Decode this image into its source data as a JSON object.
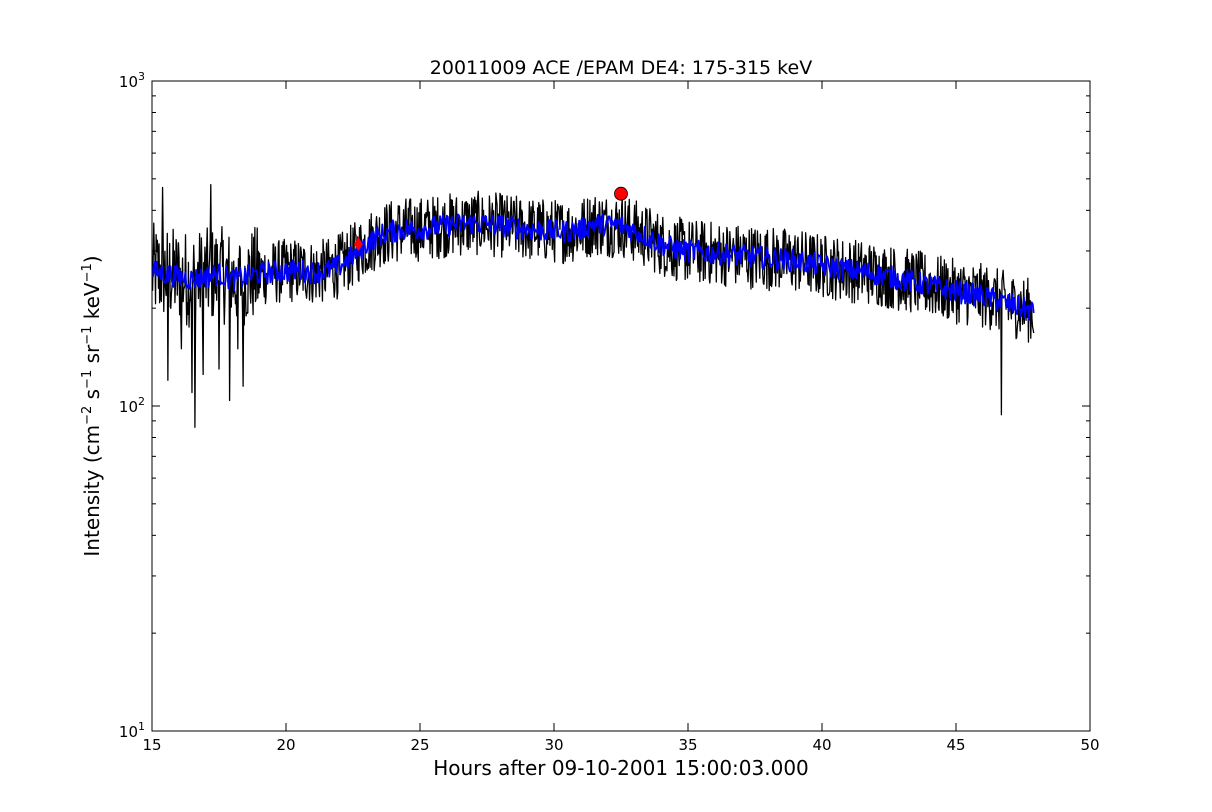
{
  "chart_data": {
    "type": "line",
    "title": "20011009 ACE /EPAM DE4: 175-315 keV",
    "xlabel": "Hours after 09-10-2001 15:00:03.000",
    "ylabel_parts": {
      "prefix": "Intensity (cm",
      "exp1": "−2",
      "mid1": " s",
      "exp2": "−1",
      "mid2": " sr",
      "exp3": "−1",
      "mid3": " keV",
      "exp4": "−1",
      "suffix": ")"
    },
    "xlim": [
      15,
      50
    ],
    "ylim": [
      10,
      1000
    ],
    "yscale": "log",
    "grid": false,
    "x_ticks": [
      {
        "value": 15,
        "label": "15"
      },
      {
        "value": 20,
        "label": "20"
      },
      {
        "value": 25,
        "label": "25"
      },
      {
        "value": 30,
        "label": "30"
      },
      {
        "value": 35,
        "label": "35"
      },
      {
        "value": 40,
        "label": "40"
      },
      {
        "value": 45,
        "label": "45"
      },
      {
        "value": 50,
        "label": "50"
      }
    ],
    "y_ticks": [
      {
        "value": 10,
        "base": "10",
        "exp": "1"
      },
      {
        "value": 100,
        "base": "10",
        "exp": "2"
      },
      {
        "value": 1000,
        "base": "10",
        "exp": "3"
      }
    ],
    "series": [
      {
        "color": "#000000",
        "x": [
          15.0,
          15.5,
          16.0,
          16.5,
          17.0,
          17.5,
          18.0,
          18.5,
          19.0,
          19.5,
          20.0,
          20.5,
          21.0,
          21.5,
          22.0,
          22.5,
          23.0,
          23.5,
          24.0,
          24.5,
          25.0,
          26.0,
          27.0,
          28.0,
          29.0,
          30.0,
          30.5,
          31.0,
          31.5,
          32.0,
          32.5,
          33.0,
          33.5,
          34.0,
          34.5,
          35.0,
          36.0,
          37.0,
          38.0,
          39.0,
          40.0,
          41.0,
          42.0,
          43.0,
          44.0,
          45.0,
          46.0,
          46.5,
          47.0,
          47.5,
          47.9
        ],
        "y": [
          260,
          255,
          250,
          245,
          250,
          255,
          245,
          250,
          255,
          258,
          260,
          262,
          258,
          260,
          270,
          290,
          315,
          335,
          345,
          350,
          350,
          360,
          365,
          360,
          350,
          345,
          345,
          350,
          365,
          360,
          360,
          345,
          330,
          315,
          305,
          300,
          295,
          290,
          285,
          280,
          270,
          262,
          255,
          245,
          235,
          225,
          218,
          212,
          205,
          200,
          195
        ],
        "noise_amp": 0.1,
        "spikes": [
          {
            "x": 15.4,
            "y": 470
          },
          {
            "x": 15.6,
            "y": 120
          },
          {
            "x": 16.1,
            "y": 150
          },
          {
            "x": 16.5,
            "y": 110
          },
          {
            "x": 16.6,
            "y": 86
          },
          {
            "x": 16.9,
            "y": 125
          },
          {
            "x": 17.2,
            "y": 480
          },
          {
            "x": 17.5,
            "y": 130
          },
          {
            "x": 17.9,
            "y": 104
          },
          {
            "x": 18.2,
            "y": 150
          },
          {
            "x": 18.4,
            "y": 115
          },
          {
            "x": 46.7,
            "y": 94
          }
        ]
      },
      {
        "color": "#0000ff",
        "x": [
          15.0,
          15.5,
          16.0,
          16.5,
          17.0,
          17.5,
          18.0,
          18.5,
          19.0,
          19.5,
          20.0,
          20.5,
          21.0,
          21.5,
          22.0,
          22.5,
          23.0,
          23.5,
          24.0,
          24.5,
          25.0,
          26.0,
          27.0,
          28.0,
          29.0,
          30.0,
          30.5,
          31.0,
          31.5,
          32.0,
          32.5,
          33.0,
          33.5,
          34.0,
          34.5,
          35.0,
          36.0,
          37.0,
          38.0,
          39.0,
          40.0,
          41.0,
          42.0,
          43.0,
          44.0,
          45.0,
          46.0,
          46.5,
          47.0,
          47.5,
          47.9
        ],
        "y": [
          260,
          255,
          250,
          245,
          250,
          255,
          245,
          250,
          255,
          258,
          260,
          262,
          258,
          260,
          270,
          290,
          315,
          335,
          345,
          350,
          350,
          360,
          365,
          360,
          350,
          345,
          345,
          350,
          365,
          360,
          360,
          345,
          330,
          315,
          305,
          300,
          295,
          290,
          285,
          280,
          270,
          262,
          255,
          245,
          235,
          225,
          218,
          212,
          205,
          200,
          195
        ],
        "noise_amp": 0.035
      }
    ],
    "markers": [
      {
        "x": 22.7,
        "y": 315,
        "shape": "diamond",
        "color": "#ff0000"
      },
      {
        "x": 32.5,
        "y": 450,
        "shape": "circle",
        "color": "#ff0000"
      }
    ]
  }
}
